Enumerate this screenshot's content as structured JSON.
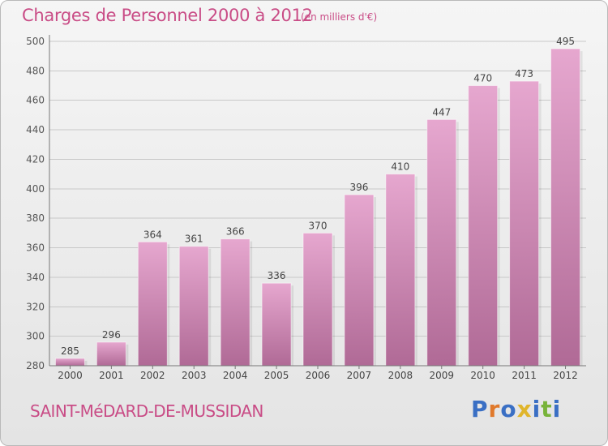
{
  "title": "Charges de Personnel 2000 à 2012",
  "subtitle": "(en milliers d'€)",
  "commune": "SAINT-MéDARD-DE-MUSSIDAN",
  "logo": {
    "text": "Proxiti",
    "letters": [
      "P",
      "r",
      "o",
      "x",
      "i",
      "t",
      "i"
    ],
    "colors": [
      "#3a6fc4",
      "#e0792b",
      "#3a6fc4",
      "#e0b52b",
      "#3a6fc4",
      "#78b33a",
      "#3a6fc4"
    ]
  },
  "colors": {
    "accent": "#c94c86",
    "bar_top": "#e6a7cf",
    "bar_bottom": "#b06a96",
    "grid": "#c8c8c8"
  },
  "chart_data": {
    "type": "bar",
    "categories": [
      "2000",
      "2001",
      "2002",
      "2003",
      "2004",
      "2005",
      "2006",
      "2007",
      "2008",
      "2009",
      "2010",
      "2011",
      "2012"
    ],
    "values": [
      285,
      296,
      364,
      361,
      366,
      336,
      370,
      396,
      410,
      447,
      470,
      473,
      495
    ],
    "ylim": [
      280,
      500
    ],
    "yticks": [
      280,
      300,
      320,
      340,
      360,
      380,
      400,
      420,
      440,
      460,
      480,
      500
    ],
    "grid": true
  }
}
